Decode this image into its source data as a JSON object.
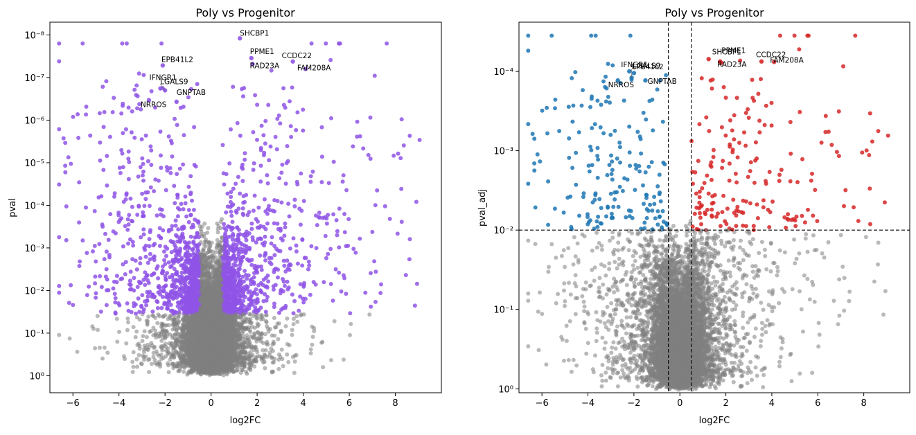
{
  "chart_data": [
    {
      "type": "scatter",
      "title": "Poly vs Progenitor",
      "xlabel": "log2FC",
      "ylabel": "pval",
      "xlim": [
        -7,
        10
      ],
      "ylim_log10": [
        0.4,
        -8.3
      ],
      "y_axis": "log10 inverted (p-value, small values at top)",
      "x_ticks": [
        "−6",
        "−4",
        "−2",
        "0",
        "2",
        "4",
        "6",
        "8"
      ],
      "y_ticks": [
        "10⁻⁸",
        "10⁻⁷",
        "10⁻⁶",
        "10⁻⁵",
        "10⁻⁴",
        "10⁻³",
        "10⁻²",
        "10⁻¹",
        "10⁰"
      ],
      "colors": {
        "significant": "#8f55e6",
        "non_significant": "#808080"
      },
      "series": [
        {
          "color": "#8f55e6",
          "points_approx": 2200
        },
        {
          "color": "#808080",
          "points_approx": 8000
        }
      ],
      "labeled_points": [
        {
          "label": "SHCBP1",
          "x": 1.25,
          "y": 1.2e-08
        },
        {
          "label": "PPME1",
          "x": 1.75,
          "y": 3.5e-08
        },
        {
          "label": "RAD23A",
          "x": 1.8,
          "y": 4.8e-08
        },
        {
          "label": "CCDC22",
          "x": 3.55,
          "y": 4.2e-08
        },
        {
          "label": "FAM208A",
          "x": 4.1,
          "y": 6.3e-08
        },
        {
          "label": "EPB41L2",
          "x": -2.1,
          "y": 5.2e-08
        },
        {
          "label": "IFNGR1",
          "x": -2.2,
          "y": 1.8e-07
        },
        {
          "label": "LGALS9",
          "x": -2.0,
          "y": 2e-07
        },
        {
          "label": "GNPTAB",
          "x": -1.5,
          "y": 3.7e-07
        },
        {
          "label": "NRROS",
          "x": -2.7,
          "y": 3.4e-07
        }
      ],
      "threshold_pval": 0.035,
      "threshold_log2fc": 0.5
    },
    {
      "type": "scatter",
      "title": "Poly vs Progenitor",
      "xlabel": "log2FC",
      "ylabel": "pval_adj",
      "xlim": [
        -7,
        10
      ],
      "ylim_log10": [
        0.05,
        -4.62
      ],
      "y_axis": "log10 inverted (adjusted p-value, small values at top)",
      "x_ticks": [
        "−6",
        "−4",
        "−2",
        "0",
        "2",
        "4",
        "6",
        "8"
      ],
      "y_ticks": [
        "10⁻⁴",
        "10⁻³",
        "10⁻²",
        "10⁻¹",
        "10⁰"
      ],
      "threshold_lines": {
        "x": [
          -0.5,
          0.5
        ],
        "y": 0.01,
        "style": "dashed black"
      },
      "colors": {
        "down": "#1f77b4",
        "up": "#d62728",
        "non_significant": "#808080"
      },
      "series": [
        {
          "color": "#1f77b4",
          "points_approx": 1200
        },
        {
          "color": "#d62728",
          "points_approx": 1100
        },
        {
          "color": "#808080",
          "points_approx": 8000
        }
      ],
      "labeled_points": [
        {
          "label": "EPB41L2",
          "x": -2.1,
          "y": 0.00012
        },
        {
          "label": "IFNGR1",
          "x": -2.2,
          "y": 0.0001
        },
        {
          "label": "LGALS9",
          "x": -2.0,
          "y": 0.000105
        },
        {
          "label": "GNPTAB",
          "x": -1.5,
          "y": 0.00013
        },
        {
          "label": "NRROS",
          "x": -2.7,
          "y": 0.00013
        },
        {
          "label": "SHCBP1",
          "x": 1.25,
          "y": 7e-05
        },
        {
          "label": "PPME1",
          "x": 1.75,
          "y": 7.5e-05
        },
        {
          "label": "RAD23A",
          "x": 1.8,
          "y": 7.8e-05
        },
        {
          "label": "CCDC22",
          "x": 3.55,
          "y": 7.5e-05
        },
        {
          "label": "FAM208A",
          "x": 4.1,
          "y": 7.6e-05
        }
      ]
    }
  ]
}
